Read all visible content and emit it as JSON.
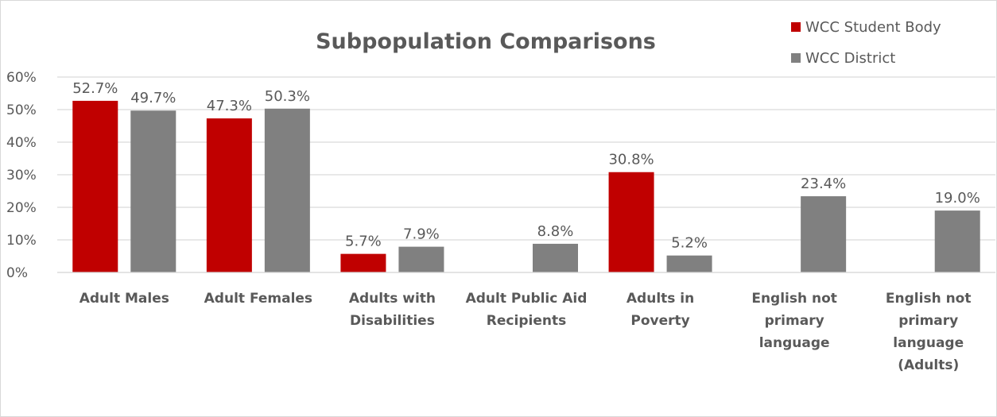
{
  "chart_data": {
    "type": "bar",
    "title": "Subpopulation Comparisons",
    "categories": [
      [
        "Adult Males"
      ],
      [
        "Adult Females"
      ],
      [
        "Adults with",
        "Disabilities"
      ],
      [
        "Adult Public Aid",
        "Recipients"
      ],
      [
        "Adults in",
        "Poverty"
      ],
      [
        "English not",
        "primary",
        "language"
      ],
      [
        "English not",
        "primary",
        "language",
        "(Adults)"
      ]
    ],
    "series": [
      {
        "name": "WCC Student Body",
        "color": "#c00000",
        "values": [
          52.7,
          47.3,
          5.7,
          null,
          30.8,
          null,
          null
        ],
        "labels": [
          "52.7%",
          "47.3%",
          "5.7%",
          "",
          "30.8%",
          "",
          ""
        ]
      },
      {
        "name": "WCC District",
        "color": "#808080",
        "values": [
          49.7,
          50.3,
          7.9,
          8.8,
          5.2,
          23.4,
          19.0
        ],
        "labels": [
          "49.7%",
          "50.3%",
          "7.9%",
          "8.8%",
          "5.2%",
          "23.4%",
          "19.0%"
        ]
      }
    ],
    "yticks": [
      "0%",
      "10%",
      "20%",
      "30%",
      "40%",
      "50%",
      "60%"
    ],
    "ylim": [
      0,
      60
    ],
    "grid": true,
    "legend_position": "top-right",
    "gridline_color": "#d9d9d9"
  }
}
